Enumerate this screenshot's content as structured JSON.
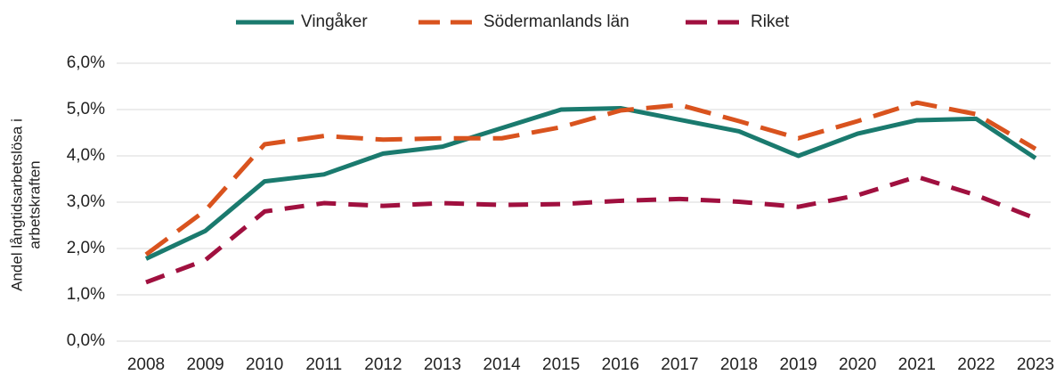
{
  "chart_data": {
    "type": "line",
    "y_label": [
      "Andel långtidsarbetslösa i",
      "arbetskraften"
    ],
    "categories": [
      "2008",
      "2009",
      "2010",
      "2011",
      "2012",
      "2013",
      "2014",
      "2015",
      "2016",
      "2017",
      "2018",
      "2019",
      "2020",
      "2021",
      "2022",
      "2023"
    ],
    "series": [
      {
        "name": "Vingåker",
        "color": "#1a7a6e",
        "dash": "none",
        "values": [
          1.78,
          2.38,
          3.45,
          3.6,
          4.05,
          4.2,
          4.6,
          5.0,
          5.03,
          4.78,
          4.53,
          4.0,
          4.48,
          4.77,
          4.8,
          3.95
        ]
      },
      {
        "name": "Södermanlands län",
        "color": "#d9531e",
        "dash": "30,14",
        "values": [
          1.87,
          2.82,
          4.25,
          4.43,
          4.35,
          4.38,
          4.38,
          4.62,
          4.98,
          5.1,
          4.75,
          4.38,
          4.75,
          5.15,
          4.9,
          4.15
        ]
      },
      {
        "name": "Riket",
        "color": "#a0103f",
        "dash": "22,14",
        "values": [
          1.27,
          1.75,
          2.8,
          2.98,
          2.92,
          2.98,
          2.94,
          2.96,
          3.03,
          3.07,
          3.01,
          2.9,
          3.15,
          3.55,
          3.15,
          2.65
        ]
      }
    ],
    "ylim": [
      0,
      6
    ],
    "yticks": [
      {
        "value": 0,
        "label": "0,0%"
      },
      {
        "value": 1,
        "label": "1,0%"
      },
      {
        "value": 2,
        "label": "2,0%"
      },
      {
        "value": 3,
        "label": "3,0%"
      },
      {
        "value": 4,
        "label": "4,0%"
      },
      {
        "value": 5,
        "label": "5,0%"
      },
      {
        "value": 6,
        "label": "6,0%"
      }
    ],
    "grid": true,
    "legend": "top"
  }
}
